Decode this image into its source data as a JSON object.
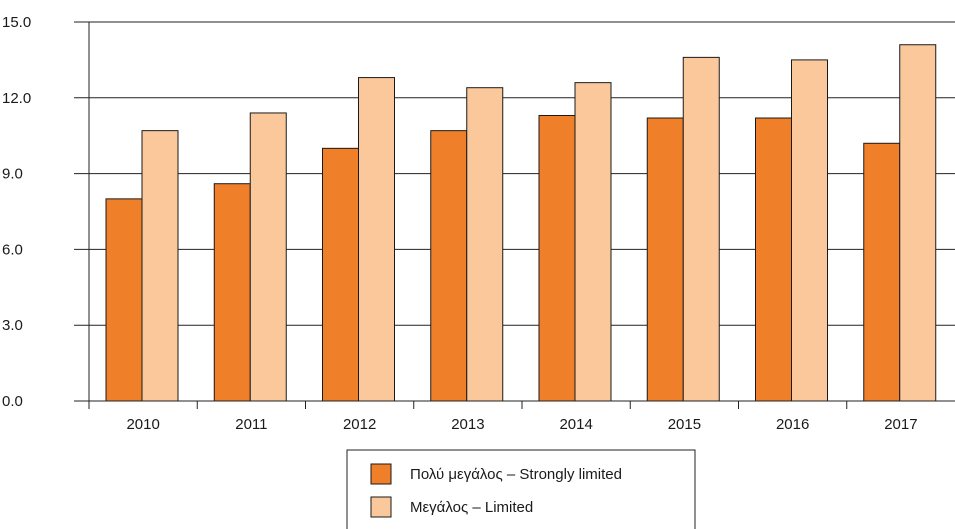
{
  "chart_data": {
    "type": "bar",
    "categories": [
      "2010",
      "2011",
      "2012",
      "2013",
      "2014",
      "2015",
      "2016",
      "2017"
    ],
    "series": [
      {
        "name": "Πολύ μεγάλος – Strongly limited",
        "color": "#f07f2a",
        "values": [
          8.0,
          8.6,
          10.0,
          10.7,
          11.3,
          11.2,
          11.2,
          10.2
        ]
      },
      {
        "name": "Μεγάλος – Limited",
        "color": "#fbc89b",
        "values": [
          10.7,
          11.4,
          12.8,
          12.4,
          12.6,
          13.6,
          13.5,
          14.1
        ]
      }
    ],
    "ylim": [
      0,
      15
    ],
    "yticks": [
      "0.0",
      "3.0",
      "6.0",
      "9.0",
      "12.0",
      "15.0"
    ],
    "grid": "horizontal",
    "legend_position": "bottom-center",
    "title": "",
    "xlabel": "",
    "ylabel": ""
  }
}
